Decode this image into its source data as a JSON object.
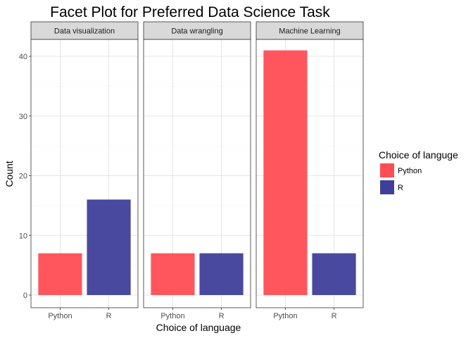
{
  "chart_data": {
    "type": "bar",
    "title": "Facet Plot for Preferred Data Science Task",
    "xlabel": "Choice of language",
    "ylabel": "Count",
    "ylim": [
      0,
      43
    ],
    "yticks": [
      0,
      10,
      20,
      30,
      40
    ],
    "grid": true,
    "categories": [
      "Python",
      "R"
    ],
    "legend": {
      "title": "Choice of languge",
      "position": "right",
      "entries": [
        {
          "name": "Python",
          "color": "#ff4d55"
        },
        {
          "name": "R",
          "color": "#3f3f9a"
        }
      ]
    },
    "facets": [
      {
        "label": "Data visualization",
        "values": [
          7,
          16
        ]
      },
      {
        "label": "Data wrangling",
        "values": [
          7,
          7
        ]
      },
      {
        "label": "Machine Learning",
        "values": [
          41,
          7
        ]
      }
    ]
  }
}
